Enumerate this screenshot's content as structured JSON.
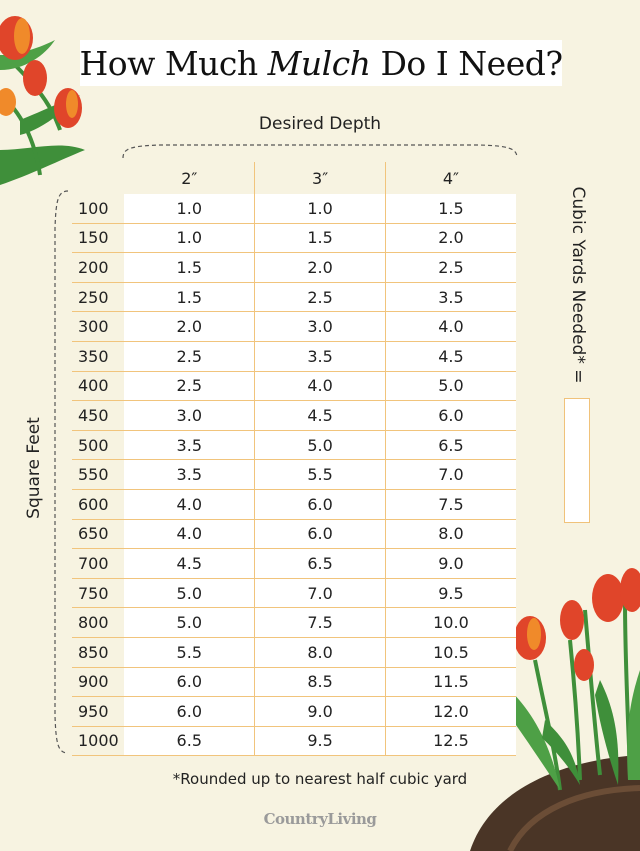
{
  "title": {
    "before": "How Much",
    "emphasis": "Mulch",
    "after": "Do I Need?"
  },
  "depth_label": "Desired Depth",
  "square_feet_label": "Square Feet",
  "cubic_yards_label": "Cubic Yards Needed* =",
  "depth_headers": [
    "2″",
    "3″",
    "4″"
  ],
  "rows": [
    {
      "sqft": "100",
      "v": [
        "1.0",
        "1.0",
        "1.5"
      ]
    },
    {
      "sqft": "150",
      "v": [
        "1.0",
        "1.5",
        "2.0"
      ]
    },
    {
      "sqft": "200",
      "v": [
        "1.5",
        "2.0",
        "2.5"
      ]
    },
    {
      "sqft": "250",
      "v": [
        "1.5",
        "2.5",
        "3.5"
      ]
    },
    {
      "sqft": "300",
      "v": [
        "2.0",
        "3.0",
        "4.0"
      ]
    },
    {
      "sqft": "350",
      "v": [
        "2.5",
        "3.5",
        "4.5"
      ]
    },
    {
      "sqft": "400",
      "v": [
        "2.5",
        "4.0",
        "5.0"
      ]
    },
    {
      "sqft": "450",
      "v": [
        "3.0",
        "4.5",
        "6.0"
      ]
    },
    {
      "sqft": "500",
      "v": [
        "3.5",
        "5.0",
        "6.5"
      ]
    },
    {
      "sqft": "550",
      "v": [
        "3.5",
        "5.5",
        "7.0"
      ]
    },
    {
      "sqft": "600",
      "v": [
        "4.0",
        "6.0",
        "7.5"
      ]
    },
    {
      "sqft": "650",
      "v": [
        "4.0",
        "6.0",
        "8.0"
      ]
    },
    {
      "sqft": "700",
      "v": [
        "4.5",
        "6.5",
        "9.0"
      ]
    },
    {
      "sqft": "750",
      "v": [
        "5.0",
        "7.0",
        "9.5"
      ]
    },
    {
      "sqft": "800",
      "v": [
        "5.0",
        "7.5",
        "10.0"
      ]
    },
    {
      "sqft": "850",
      "v": [
        "5.5",
        "8.0",
        "10.5"
      ]
    },
    {
      "sqft": "900",
      "v": [
        "6.0",
        "8.5",
        "11.5"
      ]
    },
    {
      "sqft": "950",
      "v": [
        "6.0",
        "9.0",
        "12.0"
      ]
    },
    {
      "sqft": "1000",
      "v": [
        "6.5",
        "9.5",
        "12.5"
      ]
    }
  ],
  "footnote": "*Rounded up to nearest half cubic yard",
  "brand": "CountryLiving",
  "colors": {
    "background": "#f7f3e1",
    "grid_line": "#f1c47c",
    "tulip_red": "#e0452a",
    "tulip_orange": "#f08a2a",
    "stem_green": "#3f8f3a",
    "soil": "#4a3526"
  },
  "icons": [
    "tulip-cluster-illustration",
    "tulip-garden-illustration"
  ]
}
